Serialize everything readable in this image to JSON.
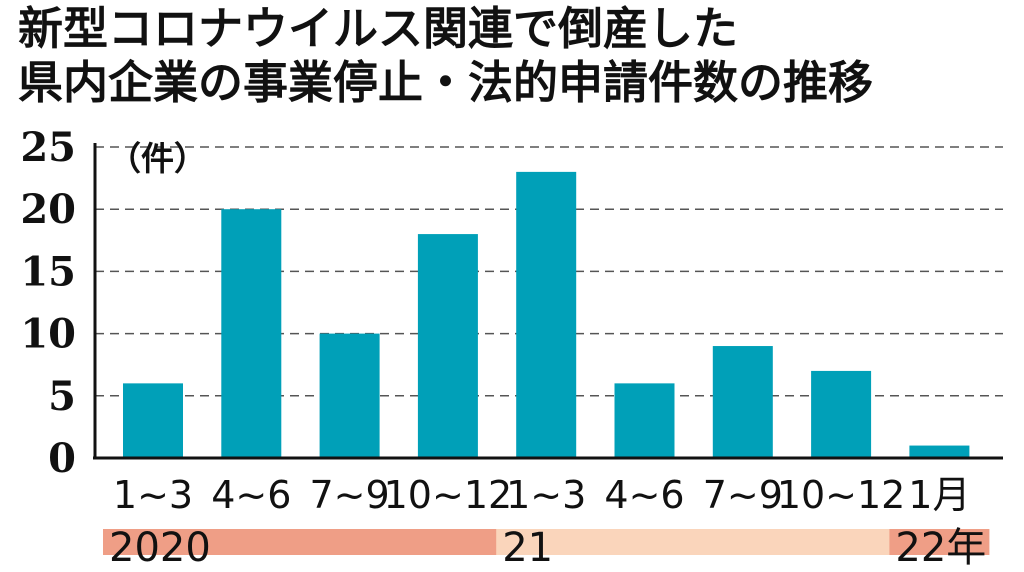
{
  "title_lines": [
    "新型コロナウイルス関連で倒産した",
    "県内企業の事業停止・法的申請件数の推移"
  ],
  "chart_data": {
    "type": "bar",
    "title": "新型コロナウイルス関連で倒産した県内企業の事業停止・法的申請件数の推移",
    "unit_label": "（件）",
    "categories": [
      "1~3",
      "4~6",
      "7~9",
      "10~12",
      "1~3",
      "4~6",
      "7~9",
      "10~12",
      "1月"
    ],
    "values": [
      6,
      20,
      10,
      18,
      23,
      6,
      9,
      7,
      1
    ],
    "ylim": [
      0,
      25
    ],
    "yticks": [
      0,
      5,
      10,
      15,
      20,
      25
    ],
    "grid": "dashed horizontal",
    "year_groups": [
      {
        "label": "2020",
        "start": 0,
        "end": 3,
        "color": "#ef9e86"
      },
      {
        "label": "21",
        "start": 4,
        "end": 7,
        "color": "#fad5bb"
      },
      {
        "label": "22年",
        "start": 8,
        "end": 8,
        "color": "#ef9e86"
      }
    ],
    "bar_color": "#00a0b8"
  }
}
